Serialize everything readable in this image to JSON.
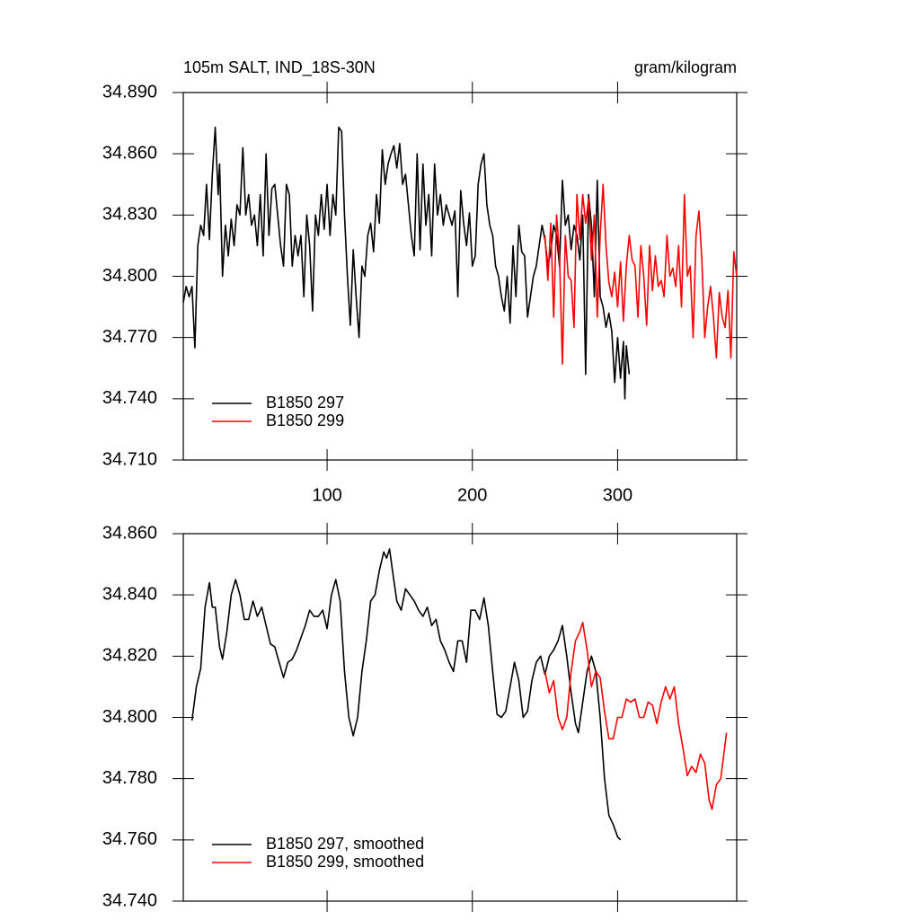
{
  "chart_data": [
    {
      "type": "line",
      "title": "105m SALT, IND_18S-30N",
      "units": "gram/kilogram",
      "xlim": [
        1,
        382
      ],
      "xticks": [
        100,
        200,
        300
      ],
      "ylim": [
        34.71,
        34.89
      ],
      "yticks": [
        {
          "value": 34.71,
          "label": "34.710"
        },
        {
          "value": 34.74,
          "label": "34.740"
        },
        {
          "value": 34.77,
          "label": "34.770"
        },
        {
          "value": 34.8,
          "label": "34.800"
        },
        {
          "value": 34.83,
          "label": "34.830"
        },
        {
          "value": 34.86,
          "label": "34.860"
        },
        {
          "value": 34.89,
          "label": "34.890"
        }
      ],
      "legend": "lower left",
      "series": [
        {
          "name": "B1850 297",
          "color": "#000000",
          "x": [
            1,
            3,
            5,
            7,
            9,
            11,
            13,
            15,
            17,
            19,
            21,
            23,
            25,
            26,
            28,
            30,
            32,
            34,
            36,
            38,
            40,
            42,
            44,
            46,
            48,
            50,
            52,
            54,
            56,
            58,
            60,
            62,
            64,
            66,
            68,
            70,
            72,
            74,
            76,
            78,
            80,
            82,
            84,
            86,
            88,
            90,
            92,
            94,
            96,
            98,
            100,
            102,
            104,
            106,
            108,
            110,
            112,
            114,
            116,
            118,
            120,
            122,
            124,
            126,
            128,
            130,
            132,
            134,
            136,
            138,
            140,
            142,
            144,
            146,
            148,
            150,
            152,
            154,
            156,
            158,
            160,
            162,
            164,
            166,
            168,
            170,
            172,
            174,
            176,
            178,
            180,
            182,
            184,
            186,
            188,
            190,
            192,
            194,
            196,
            198,
            200,
            202,
            204,
            206,
            208,
            210,
            212,
            214,
            216,
            218,
            220,
            222,
            224,
            226,
            228,
            230,
            232,
            234,
            236,
            238,
            240,
            242,
            244,
            246,
            248,
            250,
            252,
            254,
            256,
            258,
            260,
            262,
            264,
            266,
            268,
            270,
            272,
            274,
            276,
            278,
            280,
            282,
            284,
            286,
            288,
            290,
            292,
            294,
            296,
            298,
            300,
            302,
            304,
            305,
            306,
            308
          ],
          "values": [
            34.787,
            34.795,
            34.79,
            34.795,
            34.765,
            34.815,
            34.825,
            34.82,
            34.845,
            34.818,
            34.85,
            34.873,
            34.84,
            34.855,
            34.8,
            34.825,
            34.81,
            34.828,
            34.815,
            34.835,
            34.83,
            34.863,
            34.83,
            34.84,
            34.825,
            34.83,
            34.815,
            34.84,
            34.81,
            34.86,
            34.82,
            34.843,
            34.845,
            34.83,
            34.815,
            34.805,
            34.845,
            34.84,
            34.805,
            34.82,
            34.81,
            34.82,
            34.79,
            34.83,
            34.815,
            34.783,
            34.83,
            34.82,
            34.84,
            34.823,
            34.845,
            34.82,
            34.84,
            34.83,
            34.873,
            34.871,
            34.83,
            34.8,
            34.776,
            34.813,
            34.79,
            34.77,
            34.805,
            34.8,
            34.82,
            34.826,
            34.812,
            34.84,
            34.826,
            34.862,
            34.845,
            34.855,
            34.86,
            34.864,
            34.853,
            34.865,
            34.845,
            34.85,
            34.835,
            34.82,
            34.81,
            34.86,
            34.813,
            34.855,
            34.825,
            34.84,
            34.81,
            34.855,
            34.83,
            34.84,
            34.825,
            34.835,
            34.83,
            34.825,
            34.832,
            34.79,
            34.842,
            34.826,
            34.815,
            34.831,
            34.805,
            34.81,
            34.845,
            34.855,
            34.86,
            34.835,
            34.825,
            34.82,
            34.805,
            34.8,
            34.79,
            34.783,
            34.8,
            34.777,
            34.815,
            34.79,
            34.825,
            34.812,
            34.81,
            34.78,
            34.79,
            34.8,
            34.805,
            34.815,
            34.825,
            34.818,
            34.805,
            34.812,
            34.825,
            34.82,
            34.805,
            34.847,
            34.825,
            34.83,
            34.813,
            34.825,
            34.82,
            34.808,
            34.83,
            34.752,
            34.84,
            34.825,
            34.79,
            34.847,
            34.79,
            34.785,
            34.775,
            34.782,
            34.773,
            34.748,
            34.77,
            34.75,
            34.768,
            34.74,
            34.766,
            34.752
          ]
        },
        {
          "name": "B1850 299",
          "color": "#ff0000",
          "x": [
            250,
            252,
            254,
            256,
            258,
            260,
            262,
            264,
            266,
            268,
            270,
            272,
            274,
            276,
            278,
            280,
            282,
            284,
            286,
            288,
            290,
            292,
            294,
            296,
            298,
            300,
            302,
            304,
            306,
            308,
            310,
            312,
            314,
            316,
            318,
            320,
            322,
            324,
            326,
            328,
            330,
            332,
            334,
            336,
            338,
            340,
            342,
            344,
            346,
            348,
            350,
            352,
            354,
            356,
            358,
            360,
            362,
            364,
            366,
            368,
            370,
            372,
            374,
            376,
            378,
            380,
            382
          ],
          "values": [
            34.82,
            34.798,
            34.826,
            34.78,
            34.83,
            34.81,
            34.757,
            34.82,
            34.8,
            34.798,
            34.775,
            34.84,
            34.818,
            34.84,
            34.826,
            34.838,
            34.808,
            34.83,
            34.78,
            34.82,
            34.845,
            34.815,
            34.797,
            34.79,
            34.802,
            34.785,
            34.807,
            34.778,
            34.805,
            34.82,
            34.808,
            34.805,
            34.78,
            34.815,
            34.8,
            34.776,
            34.815,
            34.793,
            34.81,
            34.795,
            34.798,
            34.79,
            34.82,
            34.8,
            34.804,
            34.795,
            34.815,
            34.785,
            34.84,
            34.8,
            34.805,
            34.77,
            34.82,
            34.832,
            34.808,
            34.77,
            34.785,
            34.795,
            34.78,
            34.76,
            34.792,
            34.78,
            34.775,
            34.793,
            34.76,
            34.812,
            34.8
          ]
        }
      ]
    },
    {
      "type": "line",
      "xlim": [
        1,
        382
      ],
      "xticks": [
        100,
        200,
        300
      ],
      "ylim": [
        34.74,
        34.86
      ],
      "yticks": [
        {
          "value": 34.74,
          "label": "34.740"
        },
        {
          "value": 34.76,
          "label": "34.760"
        },
        {
          "value": 34.78,
          "label": "34.780"
        },
        {
          "value": 34.8,
          "label": "34.800"
        },
        {
          "value": 34.82,
          "label": "34.820"
        },
        {
          "value": 34.84,
          "label": "34.840"
        },
        {
          "value": 34.86,
          "label": "34.860"
        }
      ],
      "legend": "lower left",
      "series": [
        {
          "name": "B1850 297, smoothed",
          "color": "#000000",
          "x": [
            7,
            10,
            13,
            16,
            19,
            21,
            23,
            26,
            28,
            31,
            34,
            37,
            40,
            43,
            46,
            49,
            52,
            55,
            58,
            61,
            64,
            67,
            70,
            73,
            76,
            79,
            82,
            85,
            88,
            91,
            94,
            97,
            100,
            103,
            106,
            109,
            112,
            115,
            118,
            121,
            124,
            127,
            130,
            133,
            136,
            139,
            141,
            143,
            145,
            148,
            151,
            154,
            157,
            160,
            163,
            166,
            169,
            172,
            175,
            178,
            181,
            184,
            187,
            190,
            193,
            196,
            199,
            202,
            205,
            208,
            211,
            214,
            217,
            220,
            223,
            226,
            229,
            232,
            235,
            238,
            241,
            244,
            247,
            250,
            253,
            256,
            259,
            262,
            265,
            268,
            271,
            273,
            276,
            279,
            282,
            285,
            288,
            291,
            294,
            297,
            300,
            302
          ],
          "values": [
            34.799,
            34.81,
            34.816,
            34.836,
            34.844,
            34.836,
            34.836,
            34.823,
            34.819,
            34.828,
            34.84,
            34.845,
            34.84,
            34.832,
            34.832,
            34.838,
            34.833,
            34.836,
            34.83,
            34.824,
            34.823,
            34.818,
            34.813,
            34.818,
            34.819,
            34.822,
            34.826,
            34.83,
            34.835,
            34.833,
            34.833,
            34.835,
            34.829,
            34.84,
            34.845,
            34.838,
            34.815,
            34.8,
            34.794,
            34.8,
            34.815,
            34.825,
            34.838,
            34.84,
            34.848,
            34.854,
            34.852,
            34.855,
            34.848,
            34.838,
            34.835,
            34.842,
            34.84,
            34.838,
            34.835,
            34.833,
            34.836,
            34.83,
            34.832,
            34.825,
            34.822,
            34.818,
            34.815,
            34.825,
            34.825,
            34.818,
            34.835,
            34.835,
            34.832,
            34.839,
            34.83,
            34.815,
            34.801,
            34.8,
            34.802,
            34.81,
            34.818,
            34.812,
            34.8,
            34.802,
            34.812,
            34.818,
            34.82,
            34.814,
            34.82,
            34.822,
            34.825,
            34.83,
            34.82,
            34.808,
            34.798,
            34.795,
            34.805,
            34.815,
            34.82,
            34.815,
            34.8,
            34.78,
            34.768,
            34.765,
            34.761,
            34.76
          ]
        },
        {
          "name": "B1850 299, smoothed",
          "color": "#ff0000",
          "x": [
            250,
            253,
            256,
            259,
            262,
            265,
            268,
            271,
            274,
            276,
            279,
            282,
            285,
            288,
            291,
            294,
            297,
            300,
            303,
            306,
            309,
            312,
            315,
            318,
            321,
            324,
            327,
            330,
            333,
            336,
            339,
            342,
            345,
            348,
            351,
            354,
            357,
            360,
            363,
            365,
            368,
            371,
            375
          ],
          "values": [
            34.815,
            34.808,
            34.812,
            34.8,
            34.796,
            34.8,
            34.815,
            34.825,
            34.828,
            34.831,
            34.822,
            34.81,
            34.815,
            34.813,
            34.802,
            34.793,
            34.793,
            34.8,
            34.8,
            34.806,
            34.805,
            34.806,
            34.8,
            34.8,
            34.805,
            34.804,
            34.798,
            34.805,
            34.81,
            34.806,
            34.81,
            34.798,
            34.79,
            34.781,
            34.784,
            34.782,
            34.788,
            34.785,
            34.773,
            34.77,
            34.778,
            34.78,
            34.795
          ]
        }
      ]
    }
  ]
}
